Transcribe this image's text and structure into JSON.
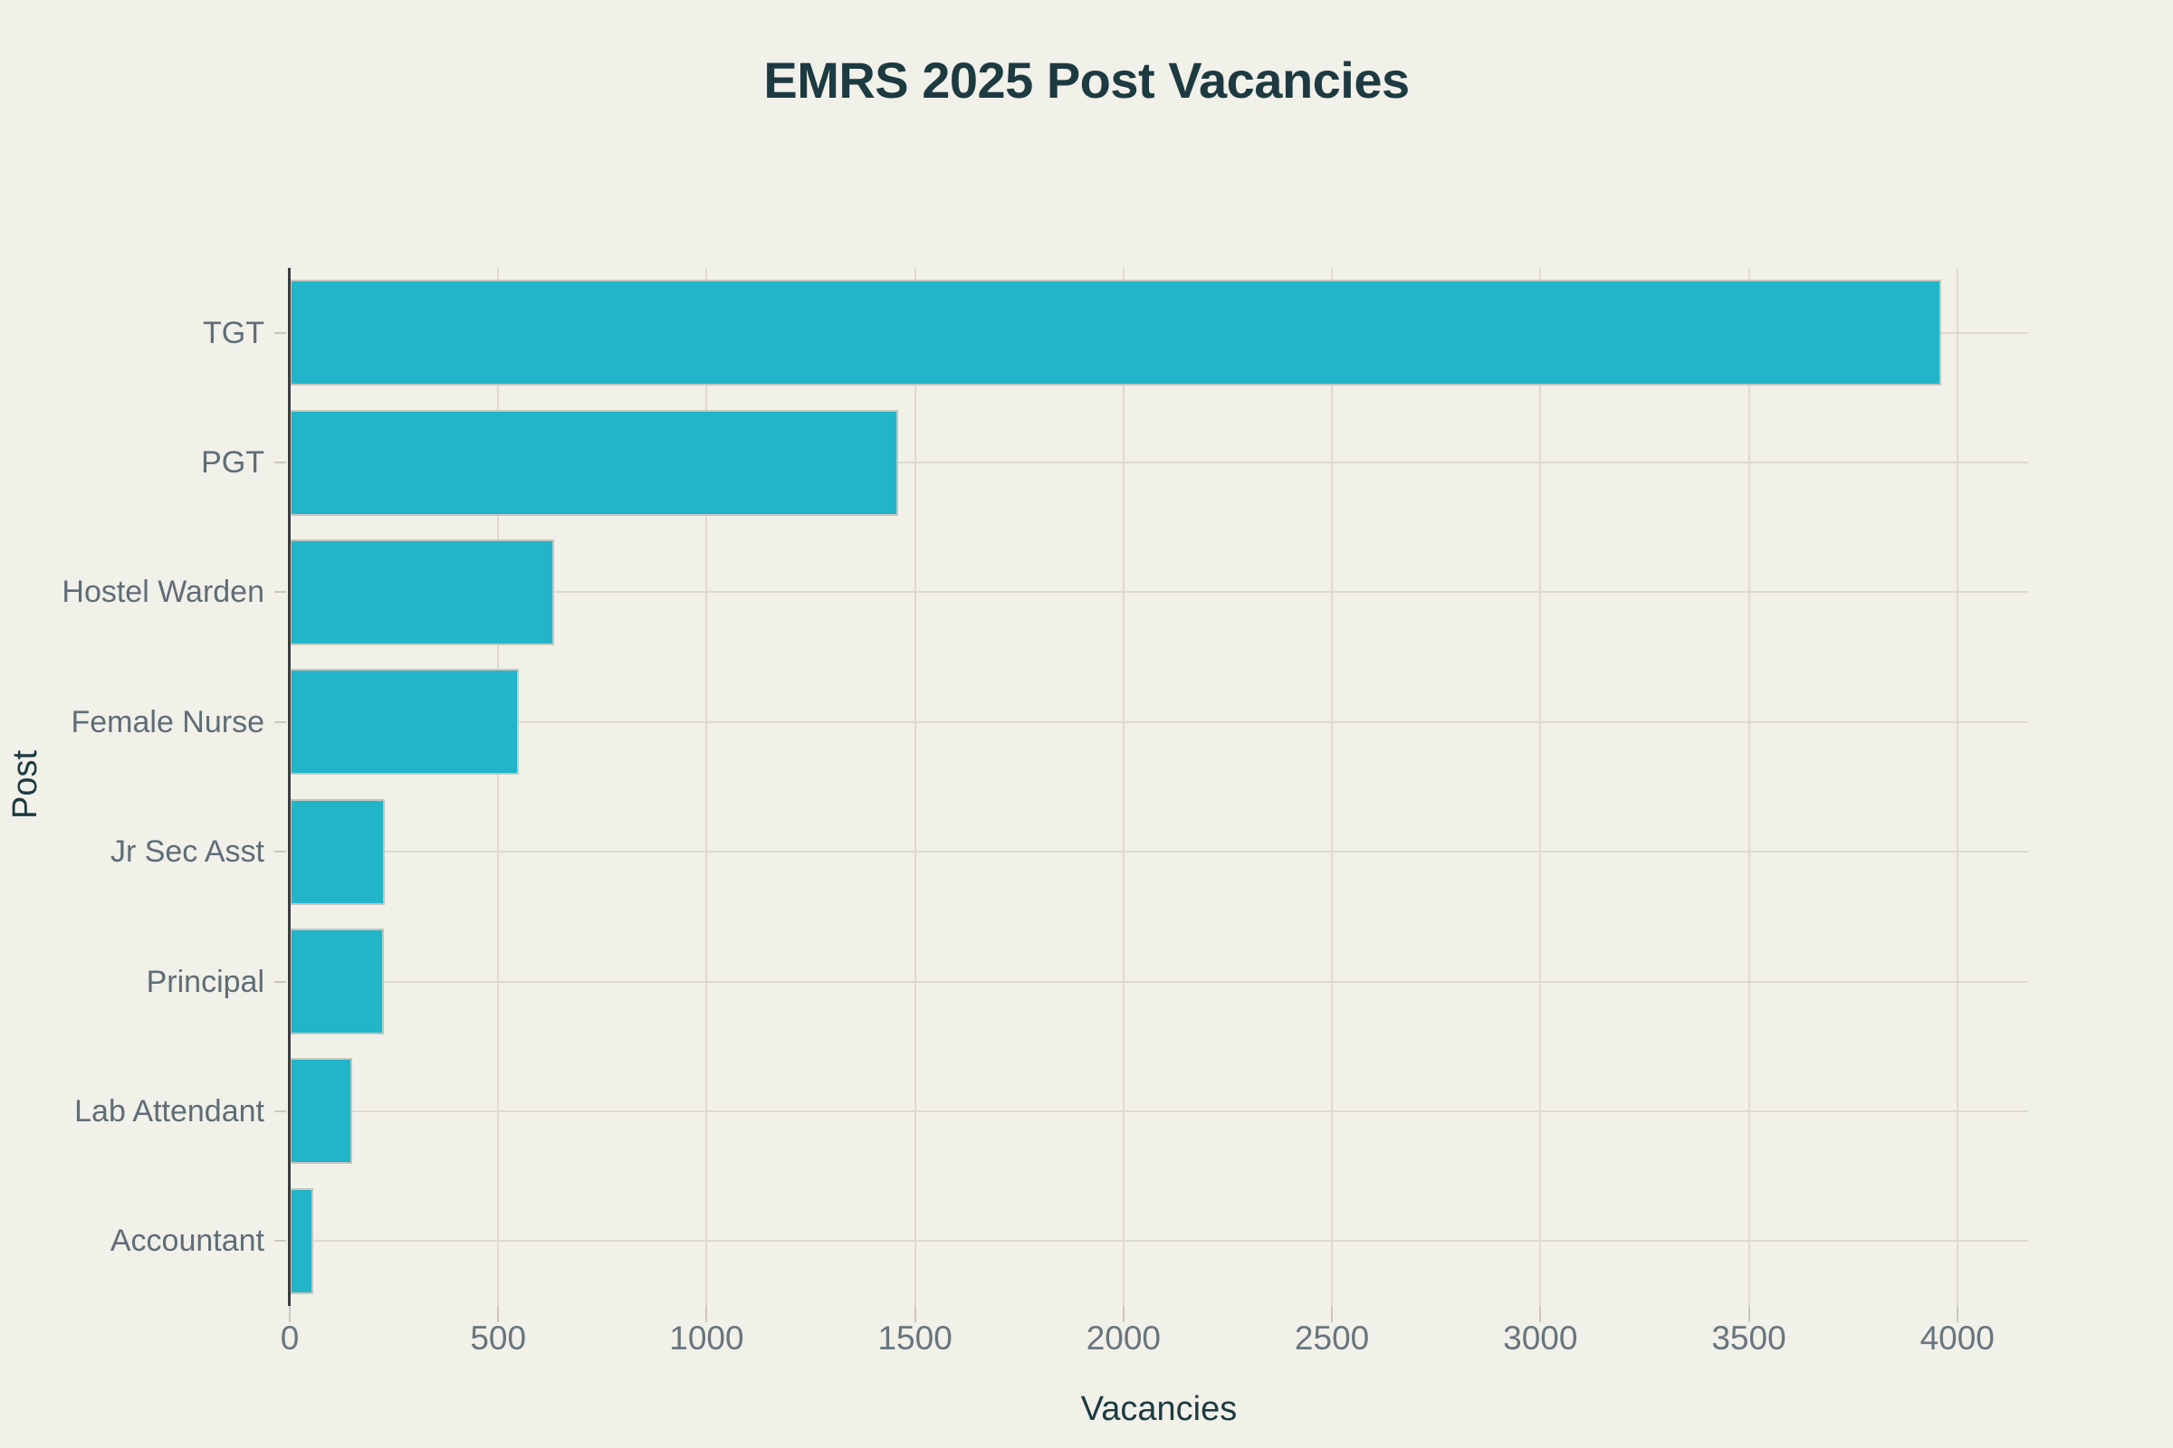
{
  "title": "EMRS 2025 Post Vacancies",
  "colors": {
    "background": "#f1f0e9",
    "bar_fill": "#22b4c9",
    "bar_edge": "#c6c5be",
    "gridline": "#dcdad2",
    "axis_spine": "#3b3e40",
    "tick_mark": "#c9c7c0",
    "tick_label_text": "#68757d",
    "category_label_text": "#5f6d76",
    "heading_text": "#1d3a41"
  },
  "chart_data": {
    "type": "bar",
    "orientation": "horizontal",
    "title": "EMRS 2025 Post Vacancies",
    "xlabel": "Vacancies",
    "ylabel": "Post",
    "categories": [
      "TGT",
      "PGT",
      "Hostel Warden",
      "Female Nurse",
      "Jr Sec Asst",
      "Principal",
      "Lab Attendant",
      "Accountant"
    ],
    "values": [
      3962,
      1460,
      635,
      550,
      228,
      225,
      150,
      57
    ],
    "xticks": [
      0,
      500,
      1000,
      1500,
      2000,
      2500,
      3000,
      3500,
      4000
    ],
    "xlim": [
      0,
      4170
    ],
    "grid": "both (vertical at x ticks, horizontal at category centers)",
    "legend": false
  }
}
